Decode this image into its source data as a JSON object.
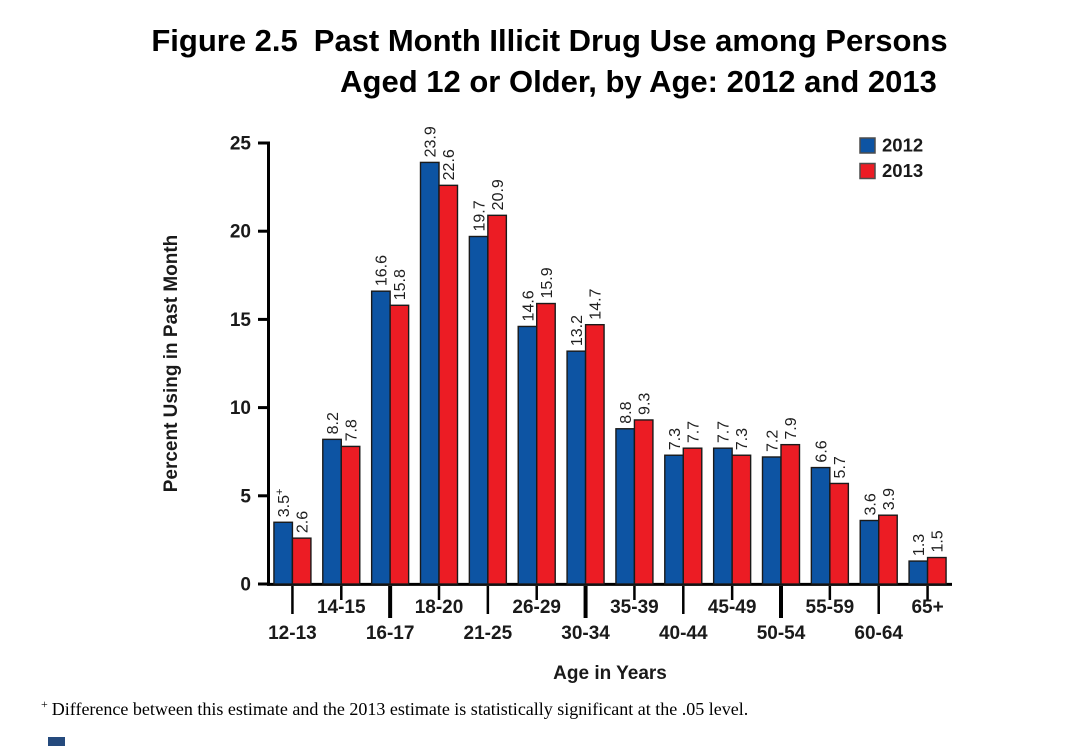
{
  "header": {
    "figure_label": "Figure 2.5",
    "title_line1_rest": "Past Month Illicit Drug Use among Persons",
    "title_line2": "Aged 12 or Older, by Age: 2012 and 2013"
  },
  "chart_data": {
    "type": "bar",
    "title": "Figure 2.5 Past Month Illicit Drug Use among Persons Aged 12 or Older, by Age: 2012 and 2013",
    "categories": [
      "12-13",
      "14-15",
      "16-17",
      "18-20",
      "21-25",
      "26-29",
      "30-34",
      "35-39",
      "40-44",
      "45-49",
      "50-54",
      "55-59",
      "60-64",
      "65+"
    ],
    "series": [
      {
        "name": "2012",
        "color": "#0d54a3",
        "values": [
          3.5,
          8.2,
          16.6,
          23.9,
          19.7,
          14.6,
          13.2,
          8.8,
          7.3,
          7.7,
          7.2,
          6.6,
          3.6,
          1.3
        ]
      },
      {
        "name": "2013",
        "color": "#ec1c24",
        "values": [
          2.6,
          7.8,
          15.8,
          22.6,
          20.9,
          15.9,
          14.7,
          9.3,
          7.7,
          7.3,
          7.9,
          5.7,
          3.9,
          1.5
        ]
      }
    ],
    "annotations": [
      {
        "series": "2012",
        "category": "12-13",
        "marker": "+"
      }
    ],
    "bar_value_labels": true,
    "xlabel": "Age in Years",
    "ylabel": "Percent Using in Past Month",
    "ylim": [
      0,
      25
    ],
    "yticks": [
      0,
      5,
      10,
      15,
      20,
      25
    ],
    "grid": false,
    "legend_position": "top-right"
  },
  "footnote": {
    "marker": "+",
    "text": "Difference between this estimate and the 2013 estimate is statistically significant at the .05 level."
  },
  "colors": {
    "bar_2012": "#0d54a3",
    "bar_2013": "#ec1c24",
    "bar_outline": "#1a1a1a",
    "axis": "#000000",
    "corner_square": "#254a7d"
  }
}
